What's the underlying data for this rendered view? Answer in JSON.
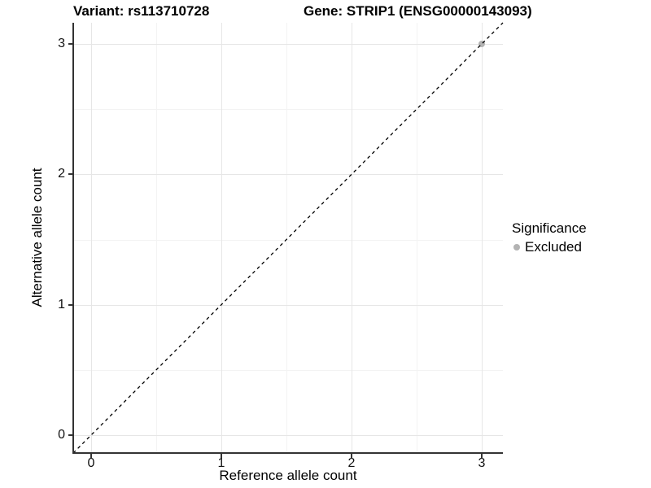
{
  "header": {
    "variant_title": "Variant: rs113710728",
    "gene_title": "Gene: STRIP1 (ENSG00000143093)"
  },
  "chart_data": {
    "type": "scatter",
    "title": "Variant: rs113710728   Gene: STRIP1 (ENSG00000143093)",
    "xlabel": "Reference allele count",
    "ylabel": "Alternative allele count",
    "x_ticks": [
      0,
      1,
      2,
      3
    ],
    "y_ticks": [
      0,
      1,
      2,
      3
    ],
    "x_minor_ticks": [
      0.5,
      1.5,
      2.5
    ],
    "y_minor_ticks": [
      0.5,
      1.5,
      2.5
    ],
    "x_range": [
      -0.1375,
      3.1625
    ],
    "y_range": [
      -0.1375,
      3.1625
    ],
    "grid": true,
    "points": [
      {
        "x": 3,
        "y": 3,
        "series": "Excluded"
      }
    ],
    "reference_line": {
      "kind": "identity",
      "slope": 1,
      "intercept": 0,
      "style": "dashed",
      "color": "#000000"
    },
    "legend": {
      "title": "Significance",
      "position": "right",
      "entries": [
        {
          "label": "Excluded",
          "color": "#b3b3b3"
        }
      ]
    },
    "colors": {
      "background": "#ffffff",
      "major_grid": "#e6e6e6",
      "minor_grid": "#f3f3f3",
      "axis_line": "#333333",
      "point_excluded": "#b3b3b3",
      "text": "#000000"
    }
  }
}
